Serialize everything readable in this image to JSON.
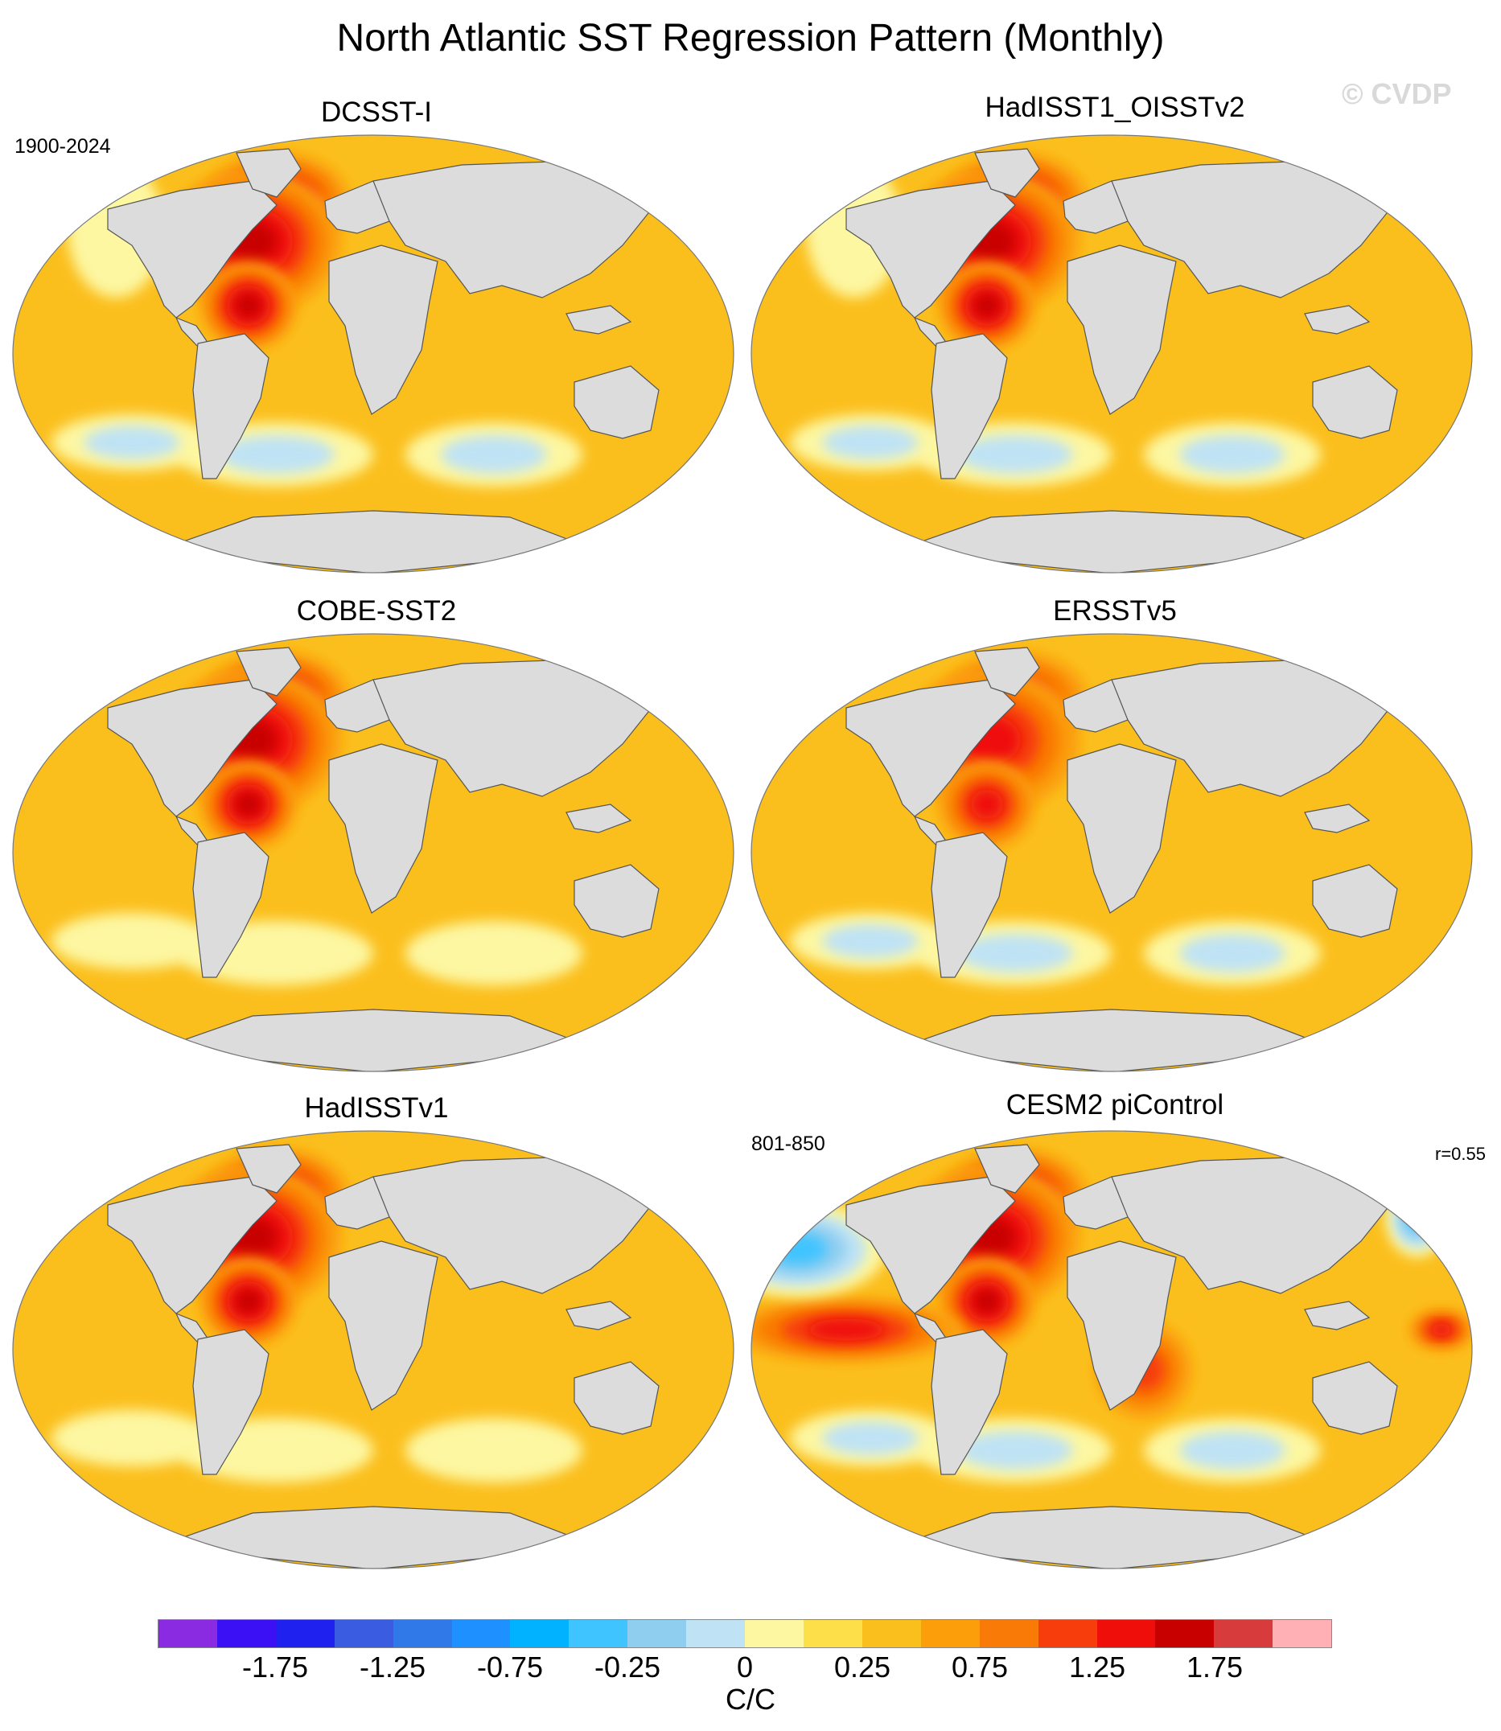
{
  "title": "North Atlantic SST Regression Pattern (Monthly)",
  "watermark": "© CVDP",
  "colors": {
    "land": "#dcdcdc",
    "coast": "#555555"
  },
  "panels": [
    {
      "id": "dcsst-i",
      "title": "DCSST-I",
      "left_annotation": "1900-2024",
      "right_annotation": "",
      "base": "#fbbf1d",
      "anomalies": [
        {
          "kind": "warm",
          "region": "north-atlantic",
          "strength": 1.6
        },
        {
          "kind": "cool",
          "region": "north-pacific-east",
          "strength": 0.4
        },
        {
          "kind": "cool",
          "region": "southern-ocean",
          "strength": 0.5
        }
      ]
    },
    {
      "id": "hadisst1-oisstv2",
      "title": "HadISST1_OISSTv2",
      "left_annotation": "",
      "right_annotation": "",
      "base": "#fbbf1d",
      "anomalies": [
        {
          "kind": "warm",
          "region": "north-atlantic",
          "strength": 1.5
        },
        {
          "kind": "cool",
          "region": "north-pacific-east",
          "strength": 0.4
        },
        {
          "kind": "cool",
          "region": "southern-ocean",
          "strength": 0.6
        }
      ]
    },
    {
      "id": "cobe-sst2",
      "title": "COBE-SST2",
      "left_annotation": "",
      "right_annotation": "",
      "base": "#fbbf1d",
      "anomalies": [
        {
          "kind": "warm",
          "region": "north-atlantic",
          "strength": 1.5
        },
        {
          "kind": "cool",
          "region": "southern-ocean",
          "strength": 0.3
        }
      ]
    },
    {
      "id": "ersstv5",
      "title": "ERSSTv5",
      "left_annotation": "",
      "right_annotation": "",
      "base": "#fbbf1d",
      "anomalies": [
        {
          "kind": "warm",
          "region": "north-atlantic",
          "strength": 1.3
        },
        {
          "kind": "cool",
          "region": "southern-ocean",
          "strength": 0.6
        }
      ]
    },
    {
      "id": "hadisstv1",
      "title": "HadISSTv1",
      "left_annotation": "",
      "right_annotation": "",
      "base": "#fbbf1d",
      "anomalies": [
        {
          "kind": "warm",
          "region": "north-atlantic",
          "strength": 1.6
        },
        {
          "kind": "cool",
          "region": "southern-ocean",
          "strength": 0.4
        }
      ]
    },
    {
      "id": "cesm2-picontrol",
      "title": "CESM2 piControl",
      "left_annotation": "801-850",
      "right_annotation": "r=0.55",
      "base": "#fbbf1d",
      "anomalies": [
        {
          "kind": "warm",
          "region": "north-atlantic",
          "strength": 1.6
        },
        {
          "kind": "warm",
          "region": "tropical-pacific",
          "strength": 1.4
        },
        {
          "kind": "warm",
          "region": "indian-ocean",
          "strength": 1.0
        },
        {
          "kind": "cool",
          "region": "north-pacific-west",
          "strength": 1.2
        },
        {
          "kind": "cool",
          "region": "southern-ocean",
          "strength": 0.7
        }
      ]
    }
  ],
  "colorbar": {
    "colors": [
      "#8a2be2",
      "#3b10f5",
      "#1f22ee",
      "#3a5ce0",
      "#2f7ae8",
      "#1e90ff",
      "#00b2ff",
      "#40c4ff",
      "#90cef0",
      "#bfe3f5",
      "#fdf7a1",
      "#fde049",
      "#fbbf1d",
      "#fb9e0a",
      "#f97a06",
      "#f63d0b",
      "#ef0e0a",
      "#c80000",
      "#d83b3b",
      "#ffb0b4"
    ],
    "tick_labels": [
      "-1.75",
      "-1.25",
      "-0.75",
      "-0.25",
      "0",
      "0.25",
      "0.75",
      "1.25",
      "1.75"
    ],
    "units": "C/C"
  }
}
